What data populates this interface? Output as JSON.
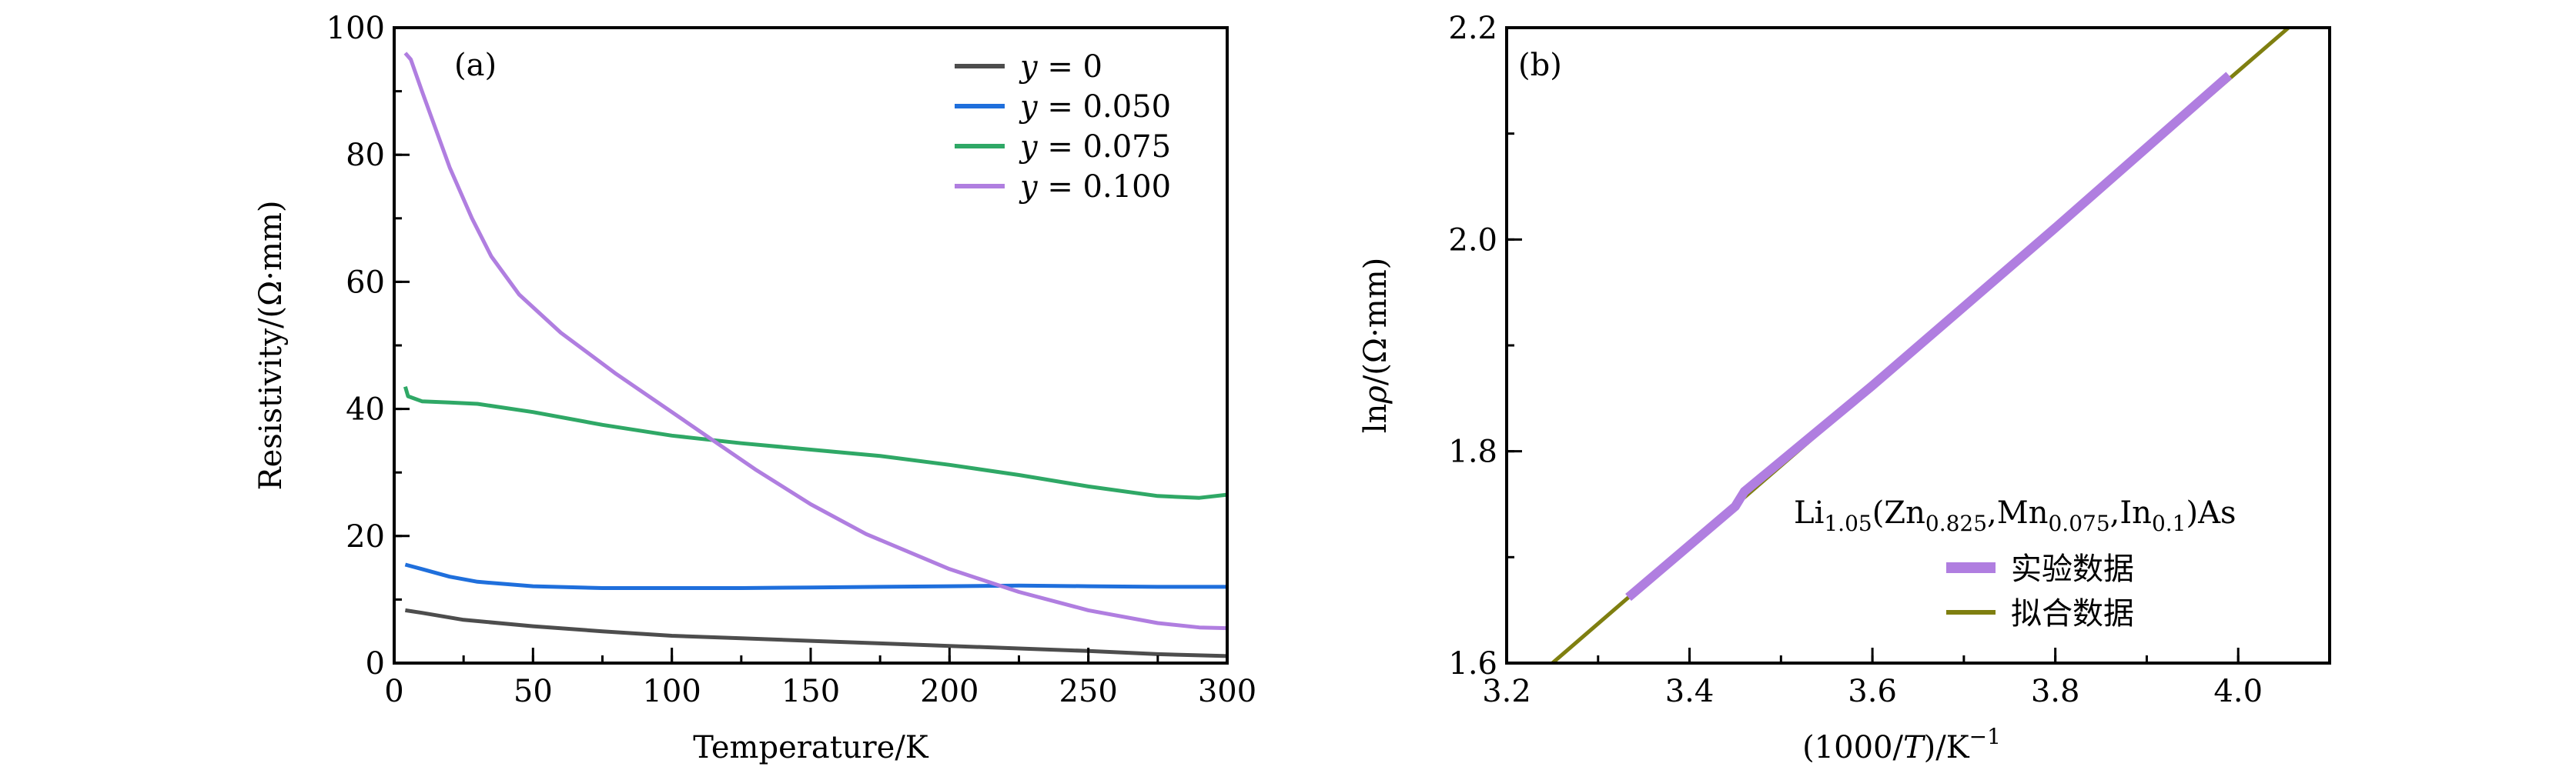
{
  "chart_data": [
    {
      "type": "line",
      "panel_label": "(a)",
      "xlabel": "Temperature/K",
      "ylabel": "Resistivity/(Ω·mm)",
      "xlim": [
        0,
        300
      ],
      "ylim": [
        0,
        100
      ],
      "xticks": [
        0,
        50,
        100,
        150,
        200,
        250,
        300
      ],
      "yticks": [
        0,
        20,
        40,
        60,
        80,
        100
      ],
      "xminor": 25,
      "yminor": 10,
      "legend_position": "top-right",
      "series": [
        {
          "var": "y",
          "value": "= 0",
          "color": "#4d4d4d",
          "x": [
            4,
            10,
            25,
            50,
            75,
            100,
            125,
            150,
            175,
            200,
            225,
            250,
            275,
            300
          ],
          "y": [
            8.3,
            7.9,
            6.8,
            5.8,
            5.0,
            4.3,
            3.9,
            3.5,
            3.1,
            2.7,
            2.3,
            1.9,
            1.4,
            1.1
          ]
        },
        {
          "var": "y",
          "value": "= 0.050",
          "color": "#1f6fdc",
          "x": [
            4,
            10,
            20,
            30,
            50,
            75,
            100,
            125,
            150,
            175,
            200,
            225,
            250,
            275,
            300
          ],
          "y": [
            15.5,
            14.8,
            13.6,
            12.8,
            12.1,
            11.8,
            11.8,
            11.8,
            11.9,
            12.0,
            12.1,
            12.2,
            12.1,
            12.0,
            12.0
          ]
        },
        {
          "var": "y",
          "value": "= 0.075",
          "color": "#2fa866",
          "x": [
            4,
            5,
            10,
            20,
            30,
            50,
            75,
            100,
            125,
            150,
            175,
            200,
            225,
            250,
            275,
            290,
            300
          ],
          "y": [
            43.5,
            42.0,
            41.2,
            41.0,
            40.8,
            39.5,
            37.5,
            35.8,
            34.6,
            33.6,
            32.6,
            31.2,
            29.6,
            27.8,
            26.3,
            26.0,
            26.5
          ]
        },
        {
          "var": "y",
          "value": "= 0.100",
          "color": "#b07ee0",
          "x": [
            4,
            6,
            10,
            15,
            20,
            28,
            35,
            45,
            60,
            80,
            100,
            115,
            130,
            150,
            170,
            200,
            225,
            250,
            275,
            290,
            300
          ],
          "y": [
            96,
            95,
            90,
            84,
            78,
            70,
            64,
            58,
            52,
            45.5,
            39.5,
            35,
            30.5,
            25,
            20.3,
            14.8,
            11.2,
            8.3,
            6.3,
            5.6,
            5.5
          ]
        }
      ]
    },
    {
      "type": "line",
      "panel_label": "(b)",
      "xlabel_parts": [
        "(1000/",
        "T",
        ")/K",
        "−1"
      ],
      "ylabel_parts": [
        "ln",
        "ρ",
        "/(Ω·mm)"
      ],
      "xlim": [
        3.2,
        4.1
      ],
      "ylim": [
        1.6,
        2.2
      ],
      "xticks": [
        "3.2",
        "3.4",
        "3.6",
        "3.8",
        "4.0"
      ],
      "yticks": [
        "1.6",
        "1.8",
        "2.0",
        "2.2"
      ],
      "xminor": 0.1,
      "yminor": 0.1,
      "legend_title_parts": [
        {
          "t": "Li",
          "sub": false
        },
        {
          "t": "1.05",
          "sub": true
        },
        {
          "t": "(Zn",
          "sub": false
        },
        {
          "t": "0.825",
          "sub": true
        },
        {
          "t": ",Mn",
          "sub": false
        },
        {
          "t": "0.075",
          "sub": true
        },
        {
          "t": ",In",
          "sub": false
        },
        {
          "t": "0.1",
          "sub": true
        },
        {
          "t": ")As",
          "sub": false
        }
      ],
      "legend_position": "bottom-right",
      "series": [
        {
          "name": "实验数据",
          "color": "#b07ee0",
          "width": "thick",
          "x": [
            3.333,
            3.45,
            3.46,
            3.6,
            3.8,
            3.99
          ],
          "y": [
            1.662,
            1.748,
            1.762,
            1.862,
            2.011,
            2.155
          ]
        },
        {
          "name": "拟合数据",
          "color": "#7f7f10",
          "width": "thin",
          "x": [
            3.25,
            4.055
          ],
          "y": [
            1.6,
            2.2
          ]
        }
      ]
    }
  ]
}
